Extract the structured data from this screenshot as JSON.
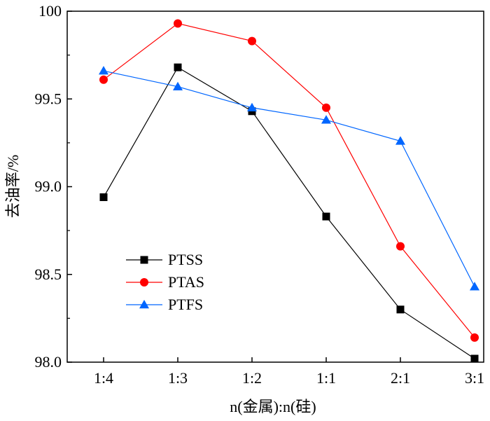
{
  "chart_data": {
    "type": "line",
    "title": "",
    "xlabel": "n(金属):n(硅)",
    "ylabel": "去油率/%",
    "categories": [
      "1:4",
      "1:3",
      "1:2",
      "1:1",
      "2:1",
      "3:1"
    ],
    "ylim": [
      98.0,
      100.0
    ],
    "yticks": [
      "98.0",
      "98.5",
      "99.0",
      "99.5",
      "100"
    ],
    "grid": false,
    "legend_position": "center-left",
    "series": [
      {
        "name": "PTSS",
        "color": "#000000",
        "marker": "square",
        "values": [
          98.94,
          99.68,
          99.43,
          98.83,
          98.3,
          98.02
        ]
      },
      {
        "name": "PTAS",
        "color": "#ff0000",
        "marker": "circle",
        "values": [
          99.61,
          99.93,
          99.83,
          99.45,
          98.66,
          98.14
        ]
      },
      {
        "name": "PTFS",
        "color": "#0066ff",
        "marker": "triangle",
        "values": [
          99.66,
          99.57,
          99.45,
          99.38,
          99.26,
          98.43
        ]
      }
    ]
  }
}
